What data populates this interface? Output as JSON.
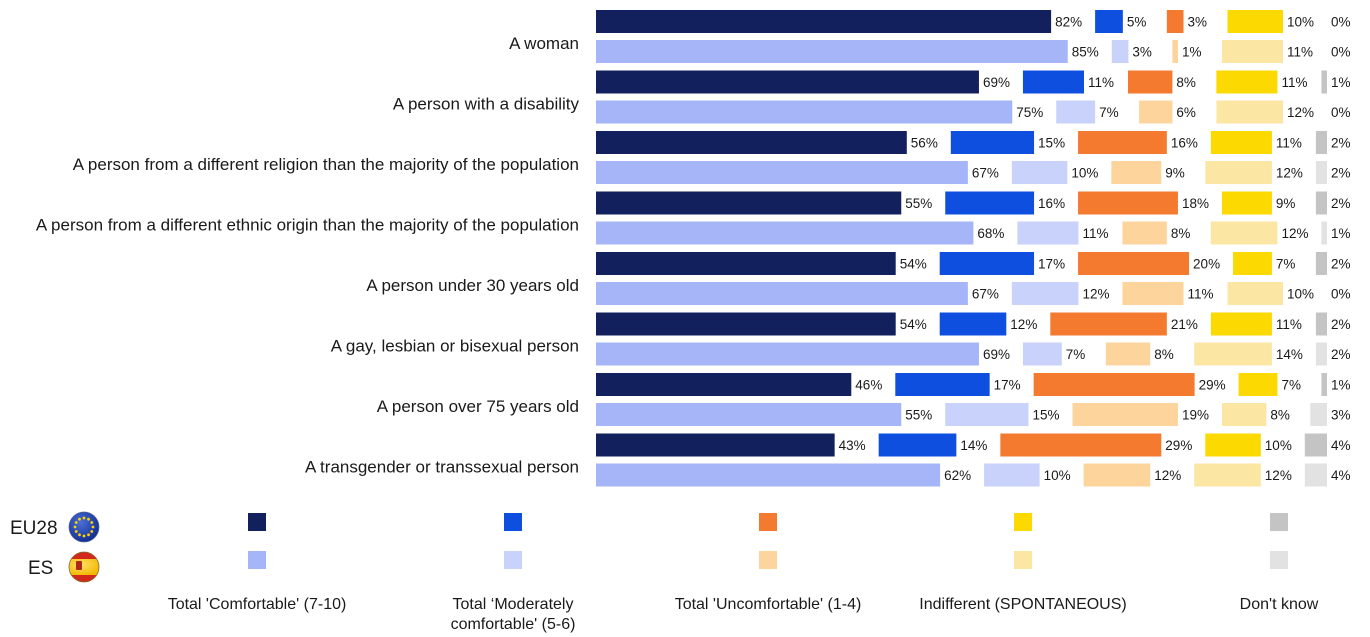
{
  "chart_data": {
    "type": "bar",
    "orientation": "horizontal",
    "stacked": true,
    "categories": [
      "A woman",
      "A person with a disability",
      "A person from a different religion than the majority of the population",
      "A person from a different ethnic origin than the majority of the population",
      "A person under 30 years old",
      "A gay, lesbian or bisexual person",
      "A person over 75 years old",
      "A transgender or transsexual person"
    ],
    "groups": [
      {
        "name": "EU28",
        "flag": "eu-flag-icon"
      },
      {
        "name": "ES",
        "flag": "spain-flag-icon"
      }
    ],
    "series": [
      {
        "name": "Total 'Comfortable' (7-10)",
        "colors": [
          "#12205e",
          "#a6b5f7"
        ],
        "EU28": [
          82,
          69,
          56,
          55,
          54,
          54,
          46,
          43
        ],
        "ES": [
          85,
          75,
          67,
          68,
          67,
          69,
          55,
          62
        ]
      },
      {
        "name": "Total ‘Moderately comfortable' (5-6)",
        "colors": [
          "#0f4fe0",
          "#c9d2fb"
        ],
        "EU28": [
          5,
          11,
          15,
          16,
          17,
          12,
          17,
          14
        ],
        "ES": [
          3,
          7,
          10,
          11,
          12,
          7,
          15,
          10
        ]
      },
      {
        "name": "Total 'Uncomfortable' (1-4)",
        "colors": [
          "#f47a30",
          "#fcd49c"
        ],
        "EU28": [
          3,
          8,
          16,
          18,
          20,
          21,
          29,
          29
        ],
        "ES": [
          1,
          6,
          9,
          8,
          11,
          8,
          19,
          12
        ]
      },
      {
        "name": "Indifferent (SPONTANEOUS)",
        "colors": [
          "#fcd900",
          "#fce6a4"
        ],
        "EU28": [
          10,
          11,
          11,
          9,
          7,
          11,
          7,
          10
        ],
        "ES": [
          11,
          12,
          12,
          12,
          10,
          14,
          8,
          12
        ]
      },
      {
        "name": "Don't know",
        "colors": [
          "#c4c4c4",
          "#e2e2e2"
        ],
        "EU28": [
          0,
          1,
          2,
          2,
          2,
          2,
          1,
          4
        ],
        "ES": [
          0,
          0,
          2,
          1,
          0,
          2,
          3,
          4
        ]
      }
    ],
    "unit": "%",
    "legend": "bottom"
  }
}
